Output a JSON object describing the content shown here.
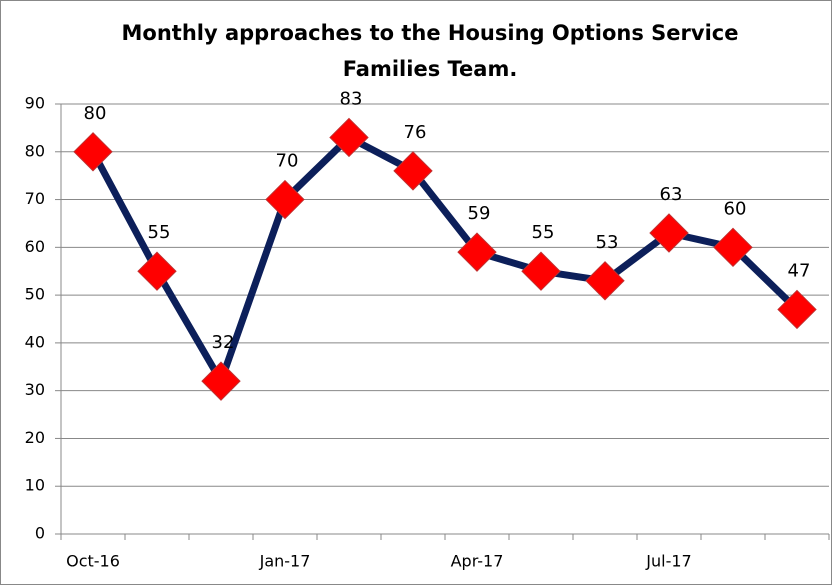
{
  "chart_data": {
    "type": "line",
    "title": [
      "Monthly approaches to the Housing Options Service",
      "Families Team."
    ],
    "categories": [
      "Oct-16",
      null,
      null,
      "Jan-17",
      null,
      null,
      "Apr-17",
      null,
      null,
      "Jul-17",
      null,
      null
    ],
    "values": [
      80,
      55,
      32,
      70,
      83,
      76,
      59,
      55,
      53,
      63,
      60,
      47
    ],
    "color": "#0c1f5a",
    "marker_color": "#ff0000",
    "ylim": [
      0,
      90
    ],
    "yticks": [
      0,
      10,
      20,
      30,
      40,
      50,
      60,
      70,
      80,
      90
    ],
    "grid": true
  }
}
